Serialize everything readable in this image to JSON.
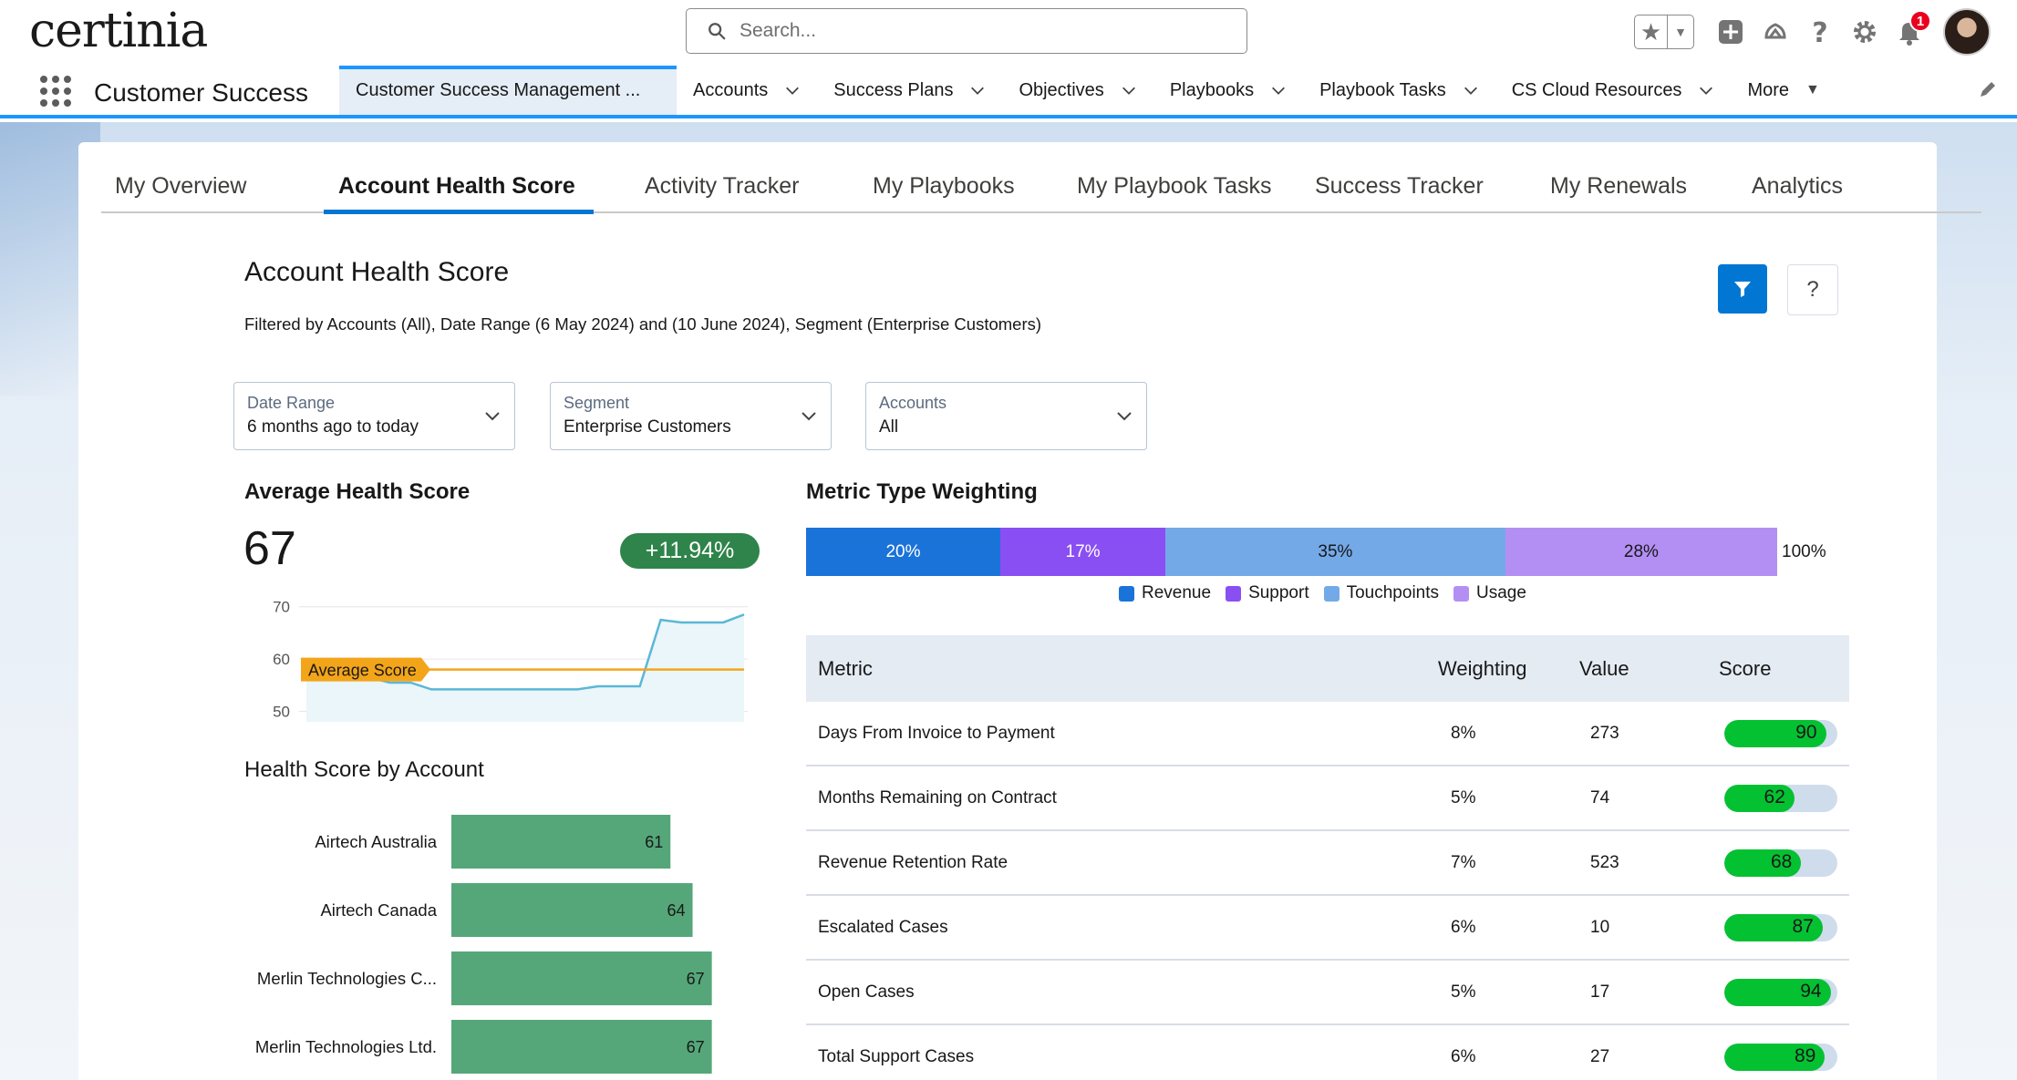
{
  "header": {
    "logo": "certinia",
    "search_placeholder": "Search...",
    "notification_count": "1"
  },
  "app": {
    "name": "Customer Success",
    "tabs": [
      {
        "label": "Customer Success Management ..."
      },
      {
        "label": "Accounts"
      },
      {
        "label": "Success Plans"
      },
      {
        "label": "Objectives"
      },
      {
        "label": "Playbooks"
      },
      {
        "label": "Playbook Tasks"
      },
      {
        "label": "CS Cloud Resources"
      },
      {
        "label": "More"
      }
    ]
  },
  "sub_tabs": [
    "My Overview",
    "Account Health Score",
    "Activity Tracker",
    "My Playbooks",
    "My Playbook Tasks",
    "Success Tracker",
    "My Renewals",
    "Analytics"
  ],
  "page": {
    "title": "Account Health Score",
    "filter_description": "Filtered by Accounts (All), Date Range (6 May 2024) and (10 June 2024), Segment (Enterprise Customers)",
    "help_label": "?"
  },
  "filters": [
    {
      "label": "Date Range",
      "value": "6 months ago to today"
    },
    {
      "label": "Segment",
      "value": "Enterprise Customers"
    },
    {
      "label": "Accounts",
      "value": "All"
    }
  ],
  "average": {
    "title": "Average Health Score",
    "value": "67",
    "change": "+11.94%"
  },
  "health_by_account_title": "Health Score by Account",
  "weighting": {
    "title": "Metric Type Weighting",
    "total": "100%"
  },
  "colors": {
    "revenue": "#1a73d9",
    "support": "#8a4ff2",
    "touchpoints": "#74a9e8",
    "usage": "#b38ff4",
    "score_fill": "#04c132",
    "account_bar": "#55a77a",
    "line": "#5bb7d6",
    "average_line": "#f3a51a"
  },
  "metric_table": {
    "headers": {
      "metric": "Metric",
      "weighting": "Weighting",
      "value": "Value",
      "score": "Score"
    },
    "rows": [
      {
        "metric": "Days From Invoice to Payment",
        "weighting": "8%",
        "value": "273",
        "score": 90
      },
      {
        "metric": "Months Remaining on Contract",
        "weighting": "5%",
        "value": "74",
        "score": 62
      },
      {
        "metric": "Revenue Retention Rate",
        "weighting": "7%",
        "value": "523",
        "score": 68
      },
      {
        "metric": "Escalated Cases",
        "weighting": "6%",
        "value": "10",
        "score": 87
      },
      {
        "metric": "Open Cases",
        "weighting": "5%",
        "value": "17",
        "score": 94
      },
      {
        "metric": "Total Support Cases",
        "weighting": "6%",
        "value": "27",
        "score": 89
      }
    ]
  },
  "chart_data": [
    {
      "type": "area",
      "title": "",
      "yticks": [
        50,
        60,
        70
      ],
      "ylim": [
        48,
        71
      ],
      "values": [
        59.5,
        56.5,
        56.5,
        56.5,
        55.5,
        55.5,
        54.2,
        54.2,
        54.2,
        54.2,
        54.2,
        54.2,
        54.2,
        54.2,
        54.8,
        54.8,
        54.8,
        67.5,
        67,
        67,
        67,
        68.5
      ],
      "average": {
        "label": "Average Score",
        "value": 58
      }
    },
    {
      "type": "bar",
      "orientation": "horizontal",
      "categories": [
        "Airtech Australia",
        "Airtech Canada",
        "Merlin Technologies C...",
        "Merlin Technologies Ltd."
      ],
      "values": [
        61,
        64,
        67,
        67
      ]
    },
    {
      "type": "bar",
      "orientation": "stacked-horizontal",
      "categories": [
        "Revenue",
        "Support",
        "Touchpoints",
        "Usage"
      ],
      "values": [
        20,
        17,
        35,
        28
      ],
      "labels": [
        "20%",
        "17%",
        "35%",
        "28%"
      ]
    }
  ]
}
